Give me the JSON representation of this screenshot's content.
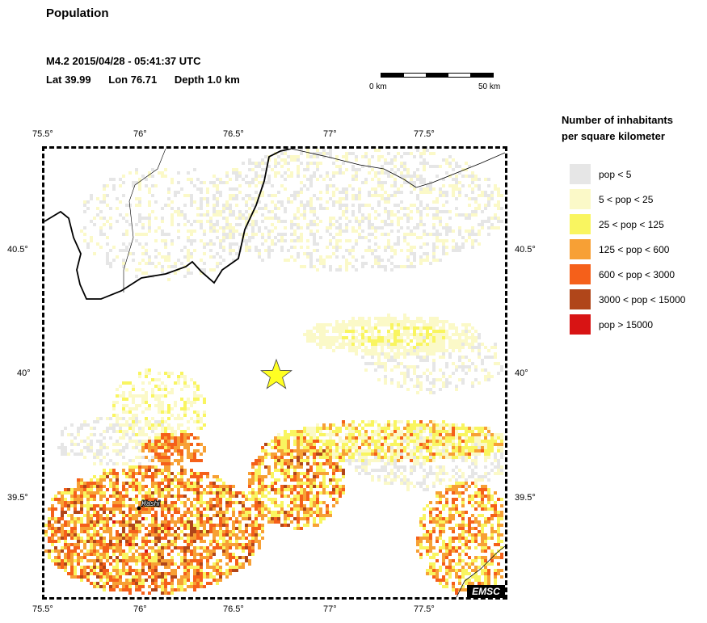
{
  "header": {
    "title": "Population",
    "event": "M4.2  2015/04/28 - 05:41:37 UTC",
    "lat": "Lat 39.99",
    "lon": "Lon  76.71",
    "depth": "Depth  1.0 km"
  },
  "scale": {
    "left_label": "0 km",
    "right_label": "50 km"
  },
  "axes": {
    "lon_ticks": [
      "75.5°",
      "76°",
      "76.5°",
      "77°",
      "77.5°"
    ],
    "lat_ticks": [
      "40.5°",
      "40°",
      "39.5°"
    ]
  },
  "map": {
    "city_label": "Kashi",
    "epicenter_color": "#ffff22",
    "credit": "EMSC"
  },
  "legend": {
    "title_line1": "Number of inhabitants",
    "title_line2": "per square kilometer",
    "items": [
      {
        "label": "pop < 5",
        "color": "#e6e6e6"
      },
      {
        "label": "5 < pop < 25",
        "color": "#fbf9c8"
      },
      {
        "label": "25 < pop < 125",
        "color": "#f9f560"
      },
      {
        "label": "125 < pop < 600",
        "color": "#f7a035"
      },
      {
        "label": "600 < pop < 3000",
        "color": "#f5601a"
      },
      {
        "label": "3000 < pop < 15000",
        "color": "#b0461a"
      },
      {
        "label": "pop > 15000",
        "color": "#d81414"
      }
    ]
  }
}
